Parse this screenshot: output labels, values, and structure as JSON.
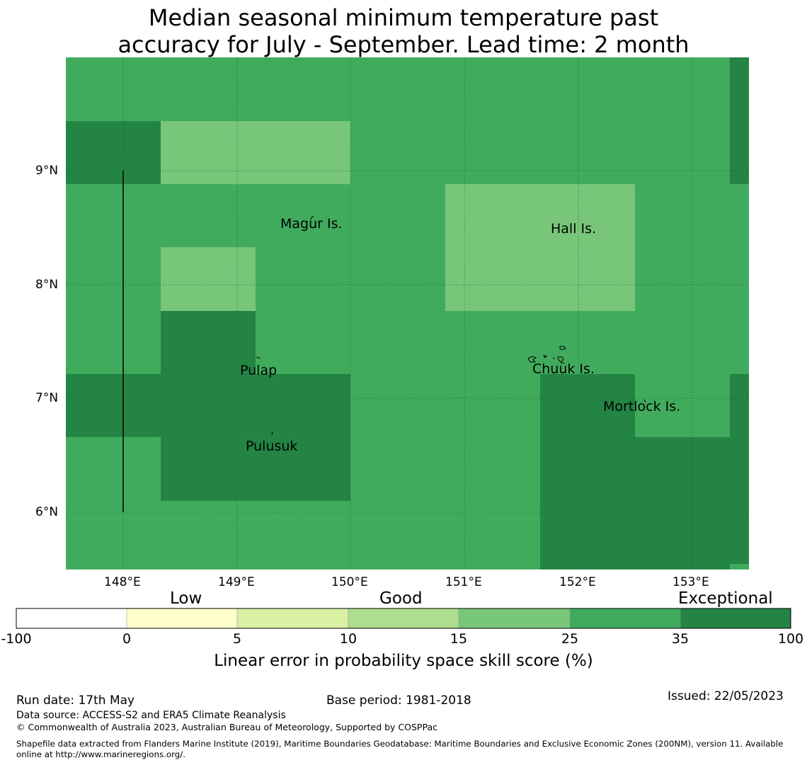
{
  "title_line1": "Median seasonal minimum temperature past",
  "title_line2": "accuracy for July - September. Lead time: 2 month",
  "map": {
    "lon_ticks": [
      "148°E",
      "149°E",
      "150°E",
      "151°E",
      "152°E",
      "153°E"
    ],
    "lat_ticks": [
      "9°N",
      "8°N",
      "7°N",
      "6°N"
    ],
    "places": [
      {
        "id": "magur",
        "name": "Magur Is."
      },
      {
        "id": "hall",
        "name": "Hall Is."
      },
      {
        "id": "pulap",
        "name": "Pulap"
      },
      {
        "id": "chuuk",
        "name": "Chuuk Is."
      },
      {
        "id": "mortlock",
        "name": "Mortlock Is."
      },
      {
        "id": "pulusuk",
        "name": "Pulusuk"
      }
    ],
    "colors": {
      "good_25_35": "#41ab5d",
      "excellent_35_100": "#238443",
      "light_15_25": "#78c679"
    }
  },
  "colorbar": {
    "categories": [
      "Low",
      "Good",
      "Exceptional"
    ],
    "ticks": [
      "-100",
      "0",
      "5",
      "10",
      "15",
      "25",
      "35",
      "100"
    ],
    "colors": [
      "#ffffff",
      "#ffffcc",
      "#d9f0a3",
      "#addd8e",
      "#78c679",
      "#41ab5d",
      "#238443"
    ],
    "label": "Linear error in probability space skill score (%)"
  },
  "footer": {
    "run_date": "Run date: 17th May",
    "base_period": "Base period: 1981-2018",
    "issued": "Issued: 22/05/2023",
    "data_source": "Data source: ACCESS-S2 and ERA5 Climate Reanalysis",
    "copyright": "© Commonwealth of Australia 2023, Australian Bureau of Meteorology, Supported by COSPPac",
    "shapefile_line1": "Shapefile data extracted from Flanders Marine Institute (2019), Maritime Boundaries Geodatabase: Maritime Boundaries and Exclusive Economic Zones (200NM), version 11. Available",
    "shapefile_line2": "online at http://www.marineregions.org/."
  }
}
